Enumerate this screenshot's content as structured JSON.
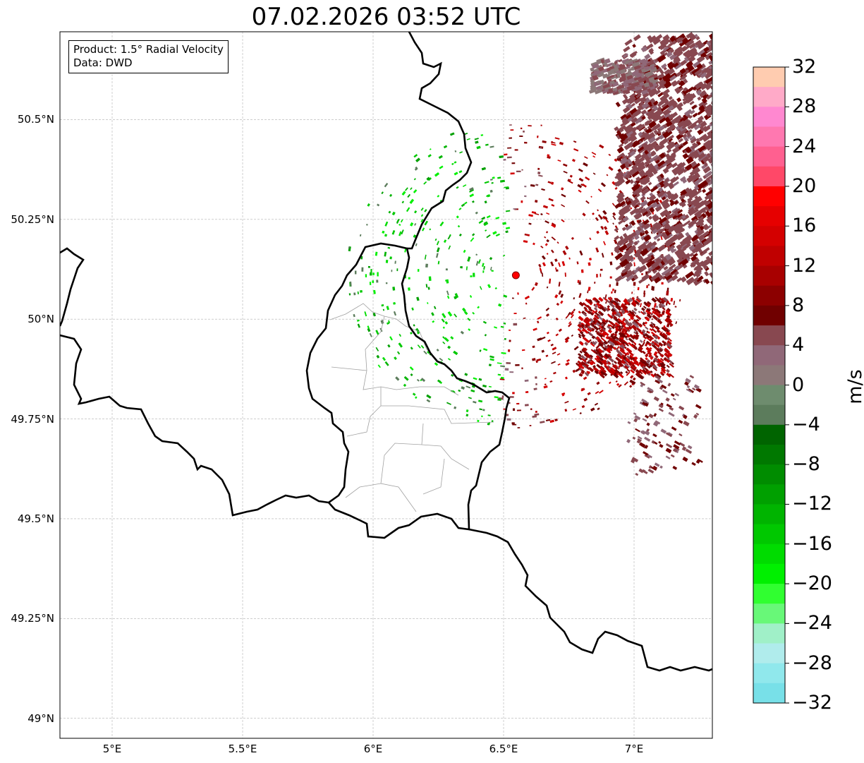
{
  "title": "07.02.2026 03:52 UTC",
  "info_box": {
    "line1": "Product: 1.5° Radial Velocity",
    "line2": "Data: DWD"
  },
  "map": {
    "lon_range": [
      4.8,
      7.3
    ],
    "lat_range": [
      48.95,
      50.72
    ],
    "lon_ticks": [
      "5°E",
      "5.5°E",
      "6°E",
      "6.5°E",
      "7°E"
    ],
    "lon_tick_values": [
      5.0,
      5.5,
      6.0,
      6.5,
      7.0
    ],
    "lat_ticks": [
      "50.5°N",
      "50.25°N",
      "50°N",
      "49.75°N",
      "49.5°N",
      "49.25°N",
      "49°N"
    ],
    "lat_tick_values": [
      50.5,
      50.25,
      50.0,
      49.75,
      49.5,
      49.25,
      49.0
    ],
    "gridlines": true,
    "radar_site": {
      "lon": 6.547,
      "lat": 50.11,
      "color": "#ff0000"
    }
  },
  "colorbar": {
    "label": "m/s",
    "min": -32,
    "max": 32,
    "tick_labels": [
      "32",
      "28",
      "24",
      "20",
      "16",
      "12",
      "8",
      "4",
      "0",
      "−4",
      "−8",
      "−12",
      "−16",
      "−20",
      "−24",
      "−28",
      "−32"
    ],
    "tick_values": [
      32,
      28,
      24,
      20,
      16,
      12,
      8,
      4,
      0,
      -4,
      -8,
      -12,
      -16,
      -20,
      -24,
      -28,
      -32
    ],
    "colors_top_to_bottom": [
      "#ffccb0",
      "#ffaac8",
      "#ff88d0",
      "#ff78b0",
      "#ff6090",
      "#ff4868",
      "#ff0000",
      "#e60000",
      "#d40000",
      "#c00000",
      "#a80000",
      "#8c0000",
      "#700000",
      "#884850",
      "#906878",
      "#8c7878",
      "#6e8c6e",
      "#5c7c5c",
      "#006400",
      "#007800",
      "#008c00",
      "#00a000",
      "#00b400",
      "#00c800",
      "#00dc00",
      "#00f000",
      "#30ff30",
      "#68f878",
      "#a0f0c8",
      "#b0ecec",
      "#90e8ec",
      "#78e0e8"
    ]
  }
}
